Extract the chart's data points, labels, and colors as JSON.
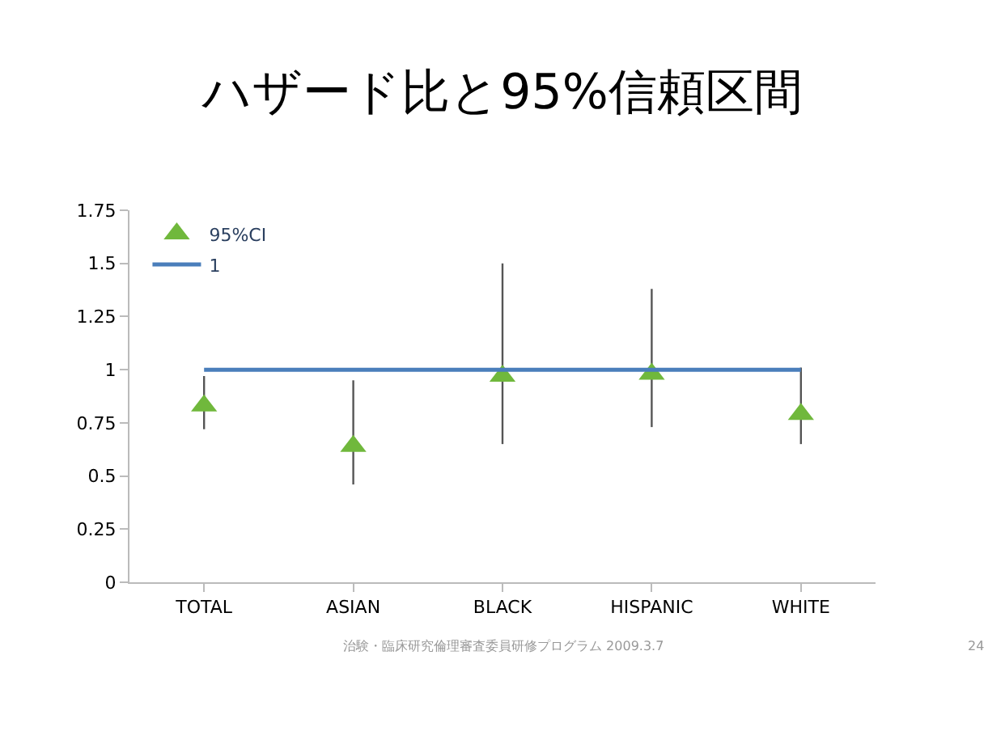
{
  "chart_data": {
    "type": "scatter",
    "title": "ハザード比と95%信頼区間",
    "categories": [
      "TOTAL",
      "ASIAN",
      "BLACK",
      "HISPANIC",
      "WHITE"
    ],
    "series": [
      {
        "name": "95%CI",
        "color": "#70b83c",
        "marker": "triangle",
        "values": [
          0.83,
          0.64,
          0.97,
          0.98,
          0.79
        ],
        "errors": [
          [
            0.72,
            0.97
          ],
          [
            0.46,
            0.95
          ],
          [
            0.65,
            1.5
          ],
          [
            0.73,
            1.38
          ],
          [
            0.65,
            1.01
          ]
        ]
      },
      {
        "name": "1",
        "type": "line",
        "color": "#4a7ebb",
        "marker": "none",
        "values": [
          1,
          1,
          1,
          1,
          1
        ]
      }
    ],
    "ylim": [
      0,
      1.75
    ],
    "yticks": [
      0,
      0.25,
      0.5,
      0.75,
      1,
      1.25,
      1.5,
      1.75
    ],
    "legend": "top left",
    "annotations": [
      "治験・臨床研究倫理審査委員研修プログラム 2009.3.7",
      "24"
    ]
  }
}
